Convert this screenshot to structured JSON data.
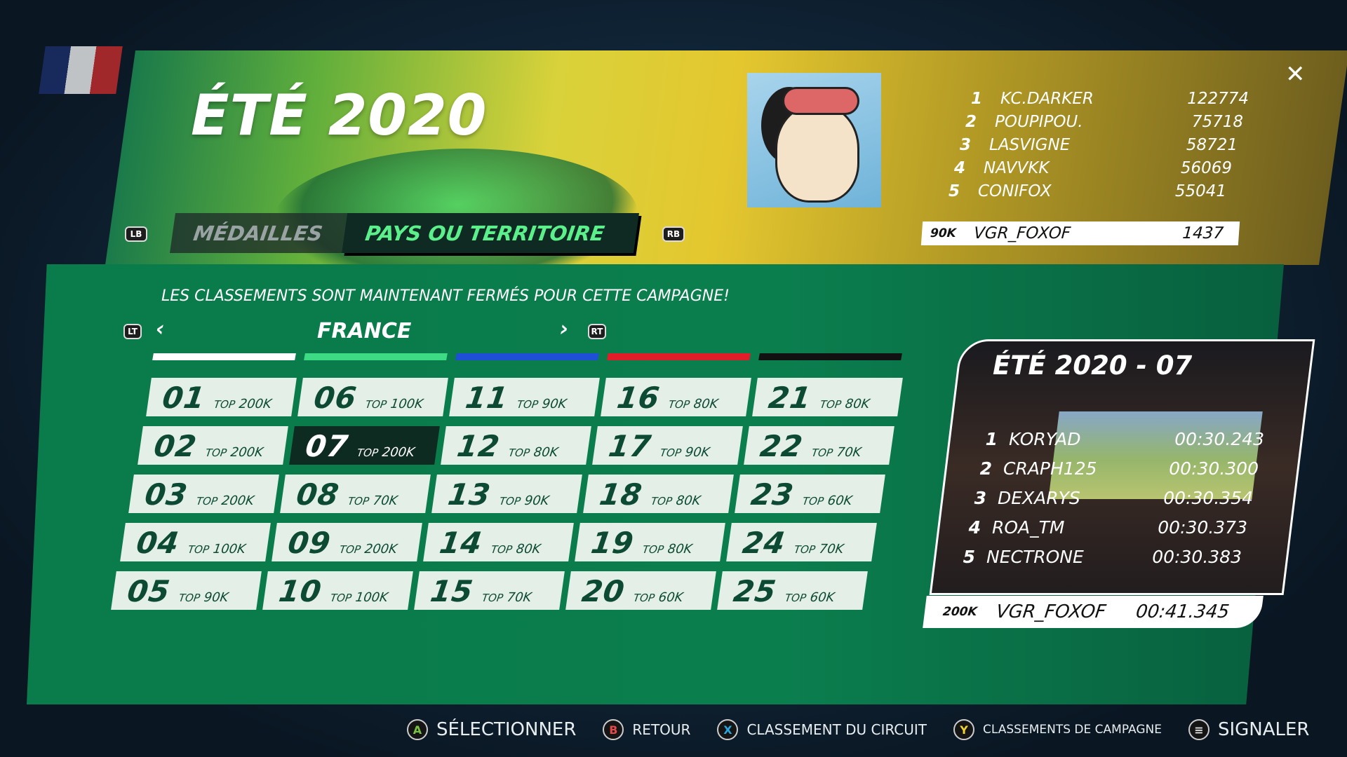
{
  "header": {
    "title": "ÉTÉ 2020",
    "close_icon": "close-icon"
  },
  "tabs": {
    "lb": "LB",
    "rb": "RB",
    "items": [
      {
        "label": "MÉDAILLES",
        "active": false
      },
      {
        "label": "PAYS OU TERRITOIRE",
        "active": true
      }
    ]
  },
  "campaign_leaderboard": {
    "rows": [
      {
        "rank": "1",
        "name": "KC.DARKER",
        "score": "122774"
      },
      {
        "rank": "2",
        "name": "POUPIPOU.",
        "score": "75718"
      },
      {
        "rank": "3",
        "name": "LASVIGNE",
        "score": "58721"
      },
      {
        "rank": "4",
        "name": "NAVVKK",
        "score": "56069"
      },
      {
        "rank": "5",
        "name": "CONIFOX",
        "score": "55041"
      }
    ],
    "player": {
      "tier": "90K",
      "name": "VGR_FOXOF",
      "score": "1437"
    }
  },
  "message": "LES CLASSEMENTS SONT MAINTENANT FERMÉS POUR CETTE CAMPAGNE!",
  "region_nav": {
    "lt": "LT",
    "rt": "RT",
    "region": "FRANCE"
  },
  "difficulty_colors": [
    "#ffffff",
    "#3ddc84",
    "#1f4fd6",
    "#e11d2a",
    "#111111"
  ],
  "tracks": [
    {
      "n": "01",
      "top": "200K"
    },
    {
      "n": "02",
      "top": "200K"
    },
    {
      "n": "03",
      "top": "200K"
    },
    {
      "n": "04",
      "top": "100K"
    },
    {
      "n": "05",
      "top": "90K"
    },
    {
      "n": "06",
      "top": "100K"
    },
    {
      "n": "07",
      "top": "200K",
      "selected": true
    },
    {
      "n": "08",
      "top": "70K"
    },
    {
      "n": "09",
      "top": "200K"
    },
    {
      "n": "10",
      "top": "100K"
    },
    {
      "n": "11",
      "top": "90K"
    },
    {
      "n": "12",
      "top": "80K"
    },
    {
      "n": "13",
      "top": "90K"
    },
    {
      "n": "14",
      "top": "80K"
    },
    {
      "n": "15",
      "top": "70K"
    },
    {
      "n": "16",
      "top": "80K"
    },
    {
      "n": "17",
      "top": "90K"
    },
    {
      "n": "18",
      "top": "80K"
    },
    {
      "n": "19",
      "top": "80K"
    },
    {
      "n": "20",
      "top": "60K"
    },
    {
      "n": "21",
      "top": "80K"
    },
    {
      "n": "22",
      "top": "70K"
    },
    {
      "n": "23",
      "top": "60K"
    },
    {
      "n": "24",
      "top": "70K"
    },
    {
      "n": "25",
      "top": "60K"
    }
  ],
  "top_label": "TOP",
  "track_card": {
    "title": "ÉTÉ 2020 - 07",
    "rows": [
      {
        "rank": "1",
        "name": "KORYAD",
        "time": "00:30.243"
      },
      {
        "rank": "2",
        "name": "CRAPH125",
        "time": "00:30.300"
      },
      {
        "rank": "3",
        "name": "DEXARYS",
        "time": "00:30.354"
      },
      {
        "rank": "4",
        "name": "ROA_TM",
        "time": "00:30.373"
      },
      {
        "rank": "5",
        "name": "NECTRONE",
        "time": "00:30.383"
      }
    ],
    "player": {
      "tier": "200K",
      "name": "VGR_FOXOF",
      "time": "00:41.345"
    }
  },
  "footer": [
    {
      "btn": "A",
      "color": "#7cc242",
      "label": "SÉLECTIONNER"
    },
    {
      "btn": "B",
      "color": "#e24a4a",
      "label": "RETOUR"
    },
    {
      "btn": "X",
      "color": "#29a8e0",
      "label": "CLASSEMENT DU CIRCUIT"
    },
    {
      "btn": "Y",
      "color": "#f2d22e",
      "label": "CLASSEMENTS DE CAMPAGNE"
    },
    {
      "btn": "≡",
      "color": "#dddddd",
      "label": "SIGNALER"
    }
  ]
}
